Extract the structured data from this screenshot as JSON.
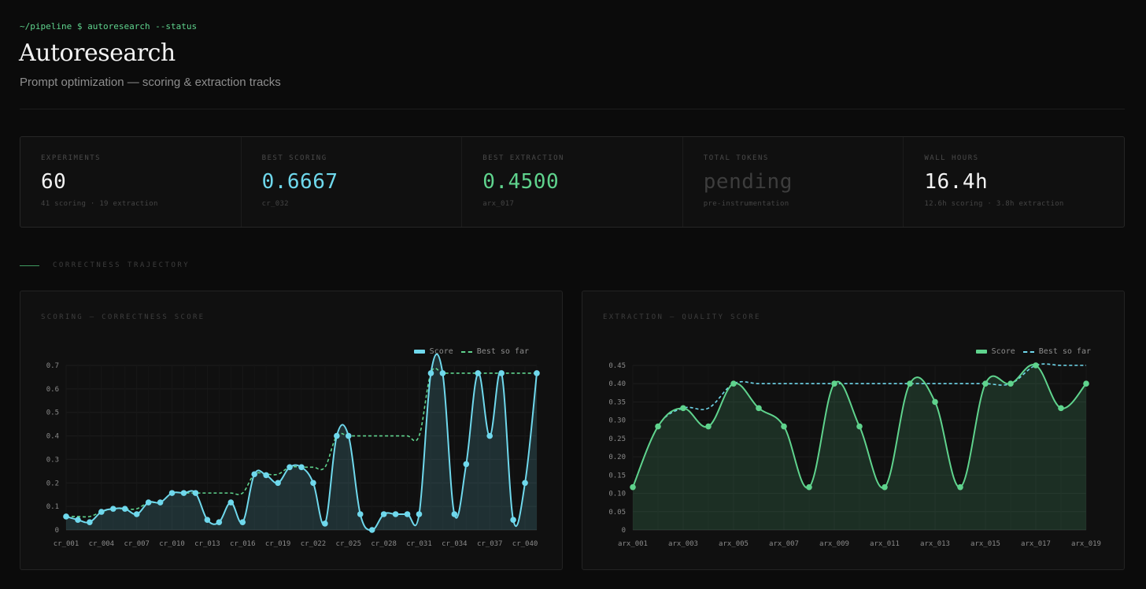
{
  "header": {
    "prompt": "~/pipeline $ autoresearch --status",
    "title": "Autoresearch",
    "subtitle": "Prompt optimization — scoring & extraction tracks"
  },
  "stats": [
    {
      "label": "EXPERIMENTS",
      "value": "60",
      "sub": "41 scoring · 19 extraction",
      "color": "#f2f2f2"
    },
    {
      "label": "BEST SCORING",
      "value": "0.6667",
      "sub": "cr_032",
      "color": "#6fd8ec"
    },
    {
      "label": "BEST EXTRACTION",
      "value": "0.4500",
      "sub": "arx_017",
      "color": "#5fd38d"
    },
    {
      "label": "TOTAL TOKENS",
      "value": "pending",
      "sub": "pre-instrumentation",
      "color": "#3d3d3d"
    },
    {
      "label": "WALL HOURS",
      "value": "16.4h",
      "sub": "12.6h scoring · 3.8h extraction",
      "color": "#f2f2f2"
    }
  ],
  "section": {
    "label": "CORRECTNESS TRAJECTORY"
  },
  "legend": {
    "score": "Score",
    "best": "Best so far"
  },
  "chart_data": [
    {
      "type": "line",
      "title": "SCORING — CORRECTNESS SCORE",
      "color": "#6fd8ec",
      "best_color": "#5fd38d",
      "ylim": [
        0,
        0.7
      ],
      "yticks": [
        0,
        0.1,
        0.2,
        0.3,
        0.4,
        0.5,
        0.6,
        0.7
      ],
      "ytick_labels": [
        "0",
        "0.1",
        "0.2",
        "0.3",
        "0.4",
        "0.5",
        "0.6",
        "0.7"
      ],
      "categories": [
        "cr_001",
        "cr_002",
        "cr_003",
        "cr_004",
        "cr_005",
        "cr_006",
        "cr_007",
        "cr_008",
        "cr_009",
        "cr_010",
        "cr_011",
        "cr_012",
        "cr_013",
        "cr_014",
        "cr_015",
        "cr_016",
        "cr_017",
        "cr_018",
        "cr_019",
        "cr_020",
        "cr_021",
        "cr_022",
        "cr_023",
        "cr_024",
        "cr_025",
        "cr_026",
        "cr_027",
        "cr_028",
        "cr_029",
        "cr_030",
        "cr_031",
        "cr_032",
        "cr_033",
        "cr_034",
        "cr_035",
        "cr_036",
        "cr_037",
        "cr_038",
        "cr_039",
        "cr_040",
        "cr_041"
      ],
      "xtick_labels": [
        "cr_001",
        "cr_004",
        "cr_007",
        "cr_010",
        "cr_013",
        "cr_016",
        "cr_019",
        "cr_022",
        "cr_025",
        "cr_028",
        "cr_031",
        "cr_034",
        "cr_037",
        "cr_040"
      ],
      "series": [
        {
          "name": "Score",
          "values": [
            0.057,
            0.043,
            0.033,
            0.077,
            0.09,
            0.09,
            0.067,
            0.117,
            0.117,
            0.157,
            0.157,
            0.157,
            0.043,
            0.033,
            0.117,
            0.033,
            0.237,
            0.233,
            0.2,
            0.267,
            0.267,
            0.2,
            0.027,
            0.4,
            0.4,
            0.067,
            0.0,
            0.067,
            0.067,
            0.067,
            0.067,
            0.6667,
            0.6667,
            0.067,
            0.28,
            0.6667,
            0.4,
            0.6667,
            0.043,
            0.2,
            0.6667
          ]
        },
        {
          "name": "Best so far",
          "values": [
            0.057,
            0.057,
            0.057,
            0.077,
            0.09,
            0.09,
            0.09,
            0.117,
            0.117,
            0.157,
            0.157,
            0.157,
            0.157,
            0.157,
            0.157,
            0.157,
            0.237,
            0.237,
            0.237,
            0.267,
            0.267,
            0.267,
            0.267,
            0.4,
            0.4,
            0.4,
            0.4,
            0.4,
            0.4,
            0.4,
            0.4,
            0.6667,
            0.6667,
            0.6667,
            0.6667,
            0.6667,
            0.6667,
            0.6667,
            0.6667,
            0.6667,
            0.6667
          ]
        }
      ]
    },
    {
      "type": "line",
      "title": "EXTRACTION — QUALITY SCORE",
      "color": "#5fd38d",
      "best_color": "#6fd8ec",
      "ylim": [
        0,
        0.45
      ],
      "yticks": [
        0,
        0.05,
        0.1,
        0.15,
        0.2,
        0.25,
        0.3,
        0.35,
        0.4,
        0.45
      ],
      "ytick_labels": [
        "0",
        "0.05",
        "0.10",
        "0.15",
        "0.20",
        "0.25",
        "0.30",
        "0.35",
        "0.40",
        "0.45"
      ],
      "categories": [
        "arx_001",
        "arx_002",
        "arx_003",
        "arx_004",
        "arx_005",
        "arx_006",
        "arx_007",
        "arx_008",
        "arx_009",
        "arx_010",
        "arx_011",
        "arx_012",
        "arx_013",
        "arx_014",
        "arx_015",
        "arx_016",
        "arx_017",
        "arx_018",
        "arx_019"
      ],
      "xtick_labels": [
        "arx_001",
        "arx_003",
        "arx_005",
        "arx_007",
        "arx_009",
        "arx_011",
        "arx_013",
        "arx_015",
        "arx_017",
        "arx_019"
      ],
      "series": [
        {
          "name": "Score",
          "values": [
            0.117,
            0.283,
            0.333,
            0.283,
            0.4,
            0.333,
            0.283,
            0.117,
            0.4,
            0.283,
            0.117,
            0.4,
            0.35,
            0.117,
            0.4,
            0.4,
            0.45,
            0.333,
            0.4
          ]
        },
        {
          "name": "Best so far",
          "values": [
            0.117,
            0.283,
            0.333,
            0.333,
            0.4,
            0.4,
            0.4,
            0.4,
            0.4,
            0.4,
            0.4,
            0.4,
            0.4,
            0.4,
            0.4,
            0.4,
            0.45,
            0.45,
            0.45
          ]
        }
      ]
    }
  ]
}
